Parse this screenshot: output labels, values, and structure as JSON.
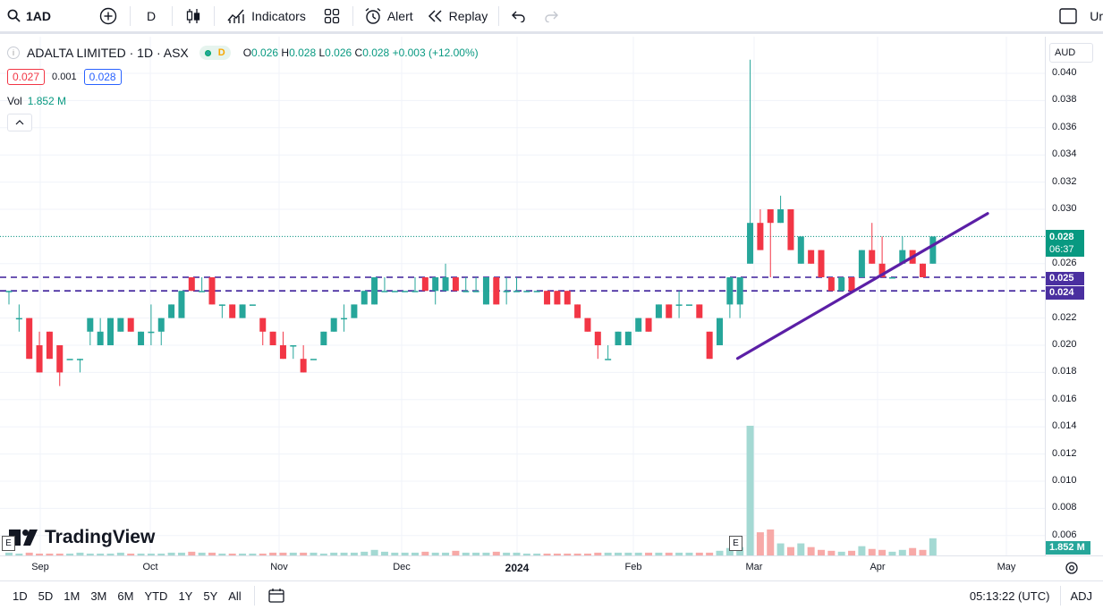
{
  "toolbar": {
    "symbol": "1AD",
    "interval": "D",
    "indicators_label": "Indicators",
    "alert_label": "Alert",
    "replay_label": "Replay",
    "right_label": "Ur"
  },
  "legend": {
    "symbol_icon_text": "i",
    "title": "ADALTA LIMITED · 1D · ASX",
    "badge_letter": "D",
    "open_key": "O",
    "open": "0.026",
    "high_key": "H",
    "high": "0.028",
    "low_key": "L",
    "low": "0.026",
    "close_key": "C",
    "close": "0.028",
    "change": "+0.003 (+12.00%)",
    "bid": "0.027",
    "spread": "0.001",
    "ask": "0.028",
    "vol_label": "Vol",
    "vol_value": "1.852 M"
  },
  "price_scale": {
    "currency": "AUD",
    "labels": [
      "0.040",
      "0.038",
      "0.036",
      "0.034",
      "0.032",
      "0.030",
      "0.026",
      "0.022",
      "0.020",
      "0.018",
      "0.016",
      "0.014",
      "0.012",
      "0.010",
      "0.008",
      "0.006"
    ],
    "last_price": "0.028",
    "countdown": "06:37",
    "line_upper": "0.025",
    "line_lower": "0.024",
    "volume_tag": "1.852 M"
  },
  "time_axis": {
    "labels": [
      "Sep",
      "Oct",
      "Nov",
      "Dec",
      "2024",
      "Feb",
      "Mar",
      "Apr",
      "May"
    ]
  },
  "bottom_bar": {
    "ranges": [
      "1D",
      "5D",
      "1M",
      "3M",
      "6M",
      "YTD",
      "1Y",
      "5Y",
      "All"
    ],
    "clock": "05:13:22 (UTC)",
    "adj": "ADJ"
  },
  "watermark": "TradingView",
  "event_marker": "E",
  "colors": {
    "up": "#26a69a",
    "down": "#f23645",
    "trendline": "#5b1fa6",
    "hline": "#3d1f9a",
    "tag_bg": "#4a2fa0",
    "last_tag": "#089981"
  },
  "chart_data": {
    "type": "candlestick",
    "symbol": "1AD",
    "ylim": [
      0.006,
      0.041
    ],
    "candles": [
      {
        "o": 0.024,
        "h": 0.024,
        "l": 0.023,
        "c": 0.024
      },
      {
        "o": 0.022,
        "h": 0.023,
        "l": 0.021,
        "c": 0.022
      },
      {
        "o": 0.022,
        "h": 0.022,
        "l": 0.019,
        "c": 0.019
      },
      {
        "o": 0.02,
        "h": 0.021,
        "l": 0.018,
        "c": 0.018
      },
      {
        "o": 0.021,
        "h": 0.021,
        "l": 0.019,
        "c": 0.019
      },
      {
        "o": 0.02,
        "h": 0.02,
        "l": 0.017,
        "c": 0.018
      },
      {
        "o": 0.019,
        "h": 0.019,
        "l": 0.019,
        "c": 0.019
      },
      {
        "o": 0.019,
        "h": 0.019,
        "l": 0.018,
        "c": 0.019
      },
      {
        "o": 0.021,
        "h": 0.022,
        "l": 0.02,
        "c": 0.022
      },
      {
        "o": 0.02,
        "h": 0.022,
        "l": 0.02,
        "c": 0.021
      },
      {
        "o": 0.02,
        "h": 0.022,
        "l": 0.02,
        "c": 0.022
      },
      {
        "o": 0.021,
        "h": 0.022,
        "l": 0.021,
        "c": 0.022
      },
      {
        "o": 0.022,
        "h": 0.022,
        "l": 0.021,
        "c": 0.021
      },
      {
        "o": 0.02,
        "h": 0.021,
        "l": 0.02,
        "c": 0.021
      },
      {
        "o": 0.021,
        "h": 0.023,
        "l": 0.02,
        "c": 0.021
      },
      {
        "o": 0.021,
        "h": 0.022,
        "l": 0.02,
        "c": 0.022
      },
      {
        "o": 0.022,
        "h": 0.023,
        "l": 0.022,
        "c": 0.023
      },
      {
        "o": 0.022,
        "h": 0.024,
        "l": 0.022,
        "c": 0.024
      },
      {
        "o": 0.025,
        "h": 0.025,
        "l": 0.024,
        "c": 0.024
      },
      {
        "o": 0.024,
        "h": 0.025,
        "l": 0.024,
        "c": 0.024
      },
      {
        "o": 0.025,
        "h": 0.025,
        "l": 0.023,
        "c": 0.023
      },
      {
        "o": 0.023,
        "h": 0.023,
        "l": 0.022,
        "c": 0.023
      },
      {
        "o": 0.023,
        "h": 0.023,
        "l": 0.022,
        "c": 0.022
      },
      {
        "o": 0.022,
        "h": 0.023,
        "l": 0.022,
        "c": 0.023
      },
      {
        "o": 0.023,
        "h": 0.023,
        "l": 0.023,
        "c": 0.023
      },
      {
        "o": 0.022,
        "h": 0.022,
        "l": 0.02,
        "c": 0.021
      },
      {
        "o": 0.021,
        "h": 0.021,
        "l": 0.02,
        "c": 0.02
      },
      {
        "o": 0.02,
        "h": 0.021,
        "l": 0.019,
        "c": 0.019
      },
      {
        "o": 0.02,
        "h": 0.02,
        "l": 0.019,
        "c": 0.02
      },
      {
        "o": 0.019,
        "h": 0.02,
        "l": 0.018,
        "c": 0.018
      },
      {
        "o": 0.019,
        "h": 0.019,
        "l": 0.019,
        "c": 0.019
      },
      {
        "o": 0.02,
        "h": 0.021,
        "l": 0.02,
        "c": 0.021
      },
      {
        "o": 0.021,
        "h": 0.022,
        "l": 0.021,
        "c": 0.022
      },
      {
        "o": 0.022,
        "h": 0.023,
        "l": 0.021,
        "c": 0.022
      },
      {
        "o": 0.022,
        "h": 0.023,
        "l": 0.022,
        "c": 0.023
      },
      {
        "o": 0.023,
        "h": 0.024,
        "l": 0.023,
        "c": 0.024
      },
      {
        "o": 0.023,
        "h": 0.025,
        "l": 0.023,
        "c": 0.025
      },
      {
        "o": 0.024,
        "h": 0.025,
        "l": 0.024,
        "c": 0.024
      },
      {
        "o": 0.024,
        "h": 0.024,
        "l": 0.024,
        "c": 0.024
      },
      {
        "o": 0.024,
        "h": 0.024,
        "l": 0.024,
        "c": 0.024
      },
      {
        "o": 0.024,
        "h": 0.025,
        "l": 0.024,
        "c": 0.024
      },
      {
        "o": 0.025,
        "h": 0.025,
        "l": 0.024,
        "c": 0.024
      },
      {
        "o": 0.024,
        "h": 0.025,
        "l": 0.023,
        "c": 0.025
      },
      {
        "o": 0.024,
        "h": 0.026,
        "l": 0.024,
        "c": 0.025
      },
      {
        "o": 0.025,
        "h": 0.025,
        "l": 0.024,
        "c": 0.024
      },
      {
        "o": 0.024,
        "h": 0.025,
        "l": 0.024,
        "c": 0.024
      },
      {
        "o": 0.024,
        "h": 0.025,
        "l": 0.024,
        "c": 0.024
      },
      {
        "o": 0.023,
        "h": 0.025,
        "l": 0.023,
        "c": 0.025
      },
      {
        "o": 0.025,
        "h": 0.025,
        "l": 0.023,
        "c": 0.023
      },
      {
        "o": 0.024,
        "h": 0.025,
        "l": 0.023,
        "c": 0.024
      },
      {
        "o": 0.024,
        "h": 0.025,
        "l": 0.024,
        "c": 0.024
      },
      {
        "o": 0.024,
        "h": 0.024,
        "l": 0.024,
        "c": 0.024
      },
      {
        "o": 0.024,
        "h": 0.024,
        "l": 0.024,
        "c": 0.024
      },
      {
        "o": 0.024,
        "h": 0.024,
        "l": 0.023,
        "c": 0.023
      },
      {
        "o": 0.024,
        "h": 0.024,
        "l": 0.023,
        "c": 0.023
      },
      {
        "o": 0.024,
        "h": 0.024,
        "l": 0.023,
        "c": 0.023
      },
      {
        "o": 0.023,
        "h": 0.023,
        "l": 0.022,
        "c": 0.022
      },
      {
        "o": 0.022,
        "h": 0.022,
        "l": 0.021,
        "c": 0.021
      },
      {
        "o": 0.021,
        "h": 0.021,
        "l": 0.019,
        "c": 0.02
      },
      {
        "o": 0.019,
        "h": 0.02,
        "l": 0.019,
        "c": 0.019
      },
      {
        "o": 0.02,
        "h": 0.021,
        "l": 0.02,
        "c": 0.021
      },
      {
        "o": 0.02,
        "h": 0.021,
        "l": 0.02,
        "c": 0.021
      },
      {
        "o": 0.021,
        "h": 0.022,
        "l": 0.021,
        "c": 0.022
      },
      {
        "o": 0.022,
        "h": 0.022,
        "l": 0.021,
        "c": 0.021
      },
      {
        "o": 0.022,
        "h": 0.023,
        "l": 0.022,
        "c": 0.023
      },
      {
        "o": 0.023,
        "h": 0.023,
        "l": 0.022,
        "c": 0.022
      },
      {
        "o": 0.023,
        "h": 0.024,
        "l": 0.022,
        "c": 0.023
      },
      {
        "o": 0.023,
        "h": 0.023,
        "l": 0.023,
        "c": 0.023
      },
      {
        "o": 0.023,
        "h": 0.023,
        "l": 0.022,
        "c": 0.022
      },
      {
        "o": 0.021,
        "h": 0.021,
        "l": 0.019,
        "c": 0.019
      },
      {
        "o": 0.02,
        "h": 0.022,
        "l": 0.02,
        "c": 0.022
      },
      {
        "o": 0.023,
        "h": 0.025,
        "l": 0.022,
        "c": 0.025
      },
      {
        "o": 0.023,
        "h": 0.025,
        "l": 0.022,
        "c": 0.025
      },
      {
        "o": 0.026,
        "h": 0.041,
        "l": 0.026,
        "c": 0.029
      },
      {
        "o": 0.029,
        "h": 0.03,
        "l": 0.027,
        "c": 0.027
      },
      {
        "o": 0.03,
        "h": 0.03,
        "l": 0.025,
        "c": 0.029
      },
      {
        "o": 0.029,
        "h": 0.031,
        "l": 0.029,
        "c": 0.03
      },
      {
        "o": 0.03,
        "h": 0.03,
        "l": 0.027,
        "c": 0.027
      },
      {
        "o": 0.026,
        "h": 0.028,
        "l": 0.026,
        "c": 0.028
      },
      {
        "o": 0.027,
        "h": 0.027,
        "l": 0.026,
        "c": 0.026
      },
      {
        "o": 0.027,
        "h": 0.027,
        "l": 0.025,
        "c": 0.025
      },
      {
        "o": 0.025,
        "h": 0.025,
        "l": 0.024,
        "c": 0.024
      },
      {
        "o": 0.024,
        "h": 0.025,
        "l": 0.024,
        "c": 0.025
      },
      {
        "o": 0.025,
        "h": 0.025,
        "l": 0.024,
        "c": 0.024
      },
      {
        "o": 0.025,
        "h": 0.027,
        "l": 0.025,
        "c": 0.027
      },
      {
        "o": 0.027,
        "h": 0.029,
        "l": 0.026,
        "c": 0.026
      },
      {
        "o": 0.026,
        "h": 0.028,
        "l": 0.025,
        "c": 0.025
      },
      {
        "o": 0.025,
        "h": 0.025,
        "l": 0.025,
        "c": 0.025
      },
      {
        "o": 0.026,
        "h": 0.028,
        "l": 0.026,
        "c": 0.027
      },
      {
        "o": 0.027,
        "h": 0.027,
        "l": 0.026,
        "c": 0.026
      },
      {
        "o": 0.026,
        "h": 0.026,
        "l": 0.025,
        "c": 0.025
      },
      {
        "o": 0.026,
        "h": 0.028,
        "l": 0.026,
        "c": 0.028
      }
    ],
    "volume_m": [
      0.3,
      0.2,
      0.3,
      0.2,
      0.2,
      0.2,
      0.2,
      0.3,
      0.2,
      0.2,
      0.2,
      0.3,
      0.2,
      0.2,
      0.2,
      0.2,
      0.3,
      0.3,
      0.4,
      0.3,
      0.3,
      0.2,
      0.2,
      0.2,
      0.2,
      0.2,
      0.3,
      0.3,
      0.3,
      0.3,
      0.3,
      0.2,
      0.3,
      0.3,
      0.3,
      0.4,
      0.6,
      0.4,
      0.3,
      0.3,
      0.3,
      0.4,
      0.3,
      0.3,
      0.5,
      0.3,
      0.3,
      0.3,
      0.4,
      0.3,
      0.3,
      0.2,
      0.2,
      0.2,
      0.2,
      0.2,
      0.2,
      0.2,
      0.3,
      0.3,
      0.3,
      0.3,
      0.3,
      0.3,
      0.3,
      0.3,
      0.3,
      0.3,
      0.3,
      0.3,
      0.5,
      0.8,
      0.9,
      14.0,
      2.5,
      2.8,
      1.3,
      0.9,
      1.3,
      0.9,
      0.6,
      0.5,
      0.4,
      0.5,
      1.0,
      0.7,
      0.6,
      0.4,
      0.6,
      0.8,
      0.6,
      1.852
    ],
    "horizontal_lines": [
      0.025,
      0.024
    ],
    "trendline": [
      {
        "x_index": 70,
        "y": 0.0189
      },
      {
        "x_index": 104,
        "y": 0.0289
      }
    ],
    "last_price": 0.028
  }
}
